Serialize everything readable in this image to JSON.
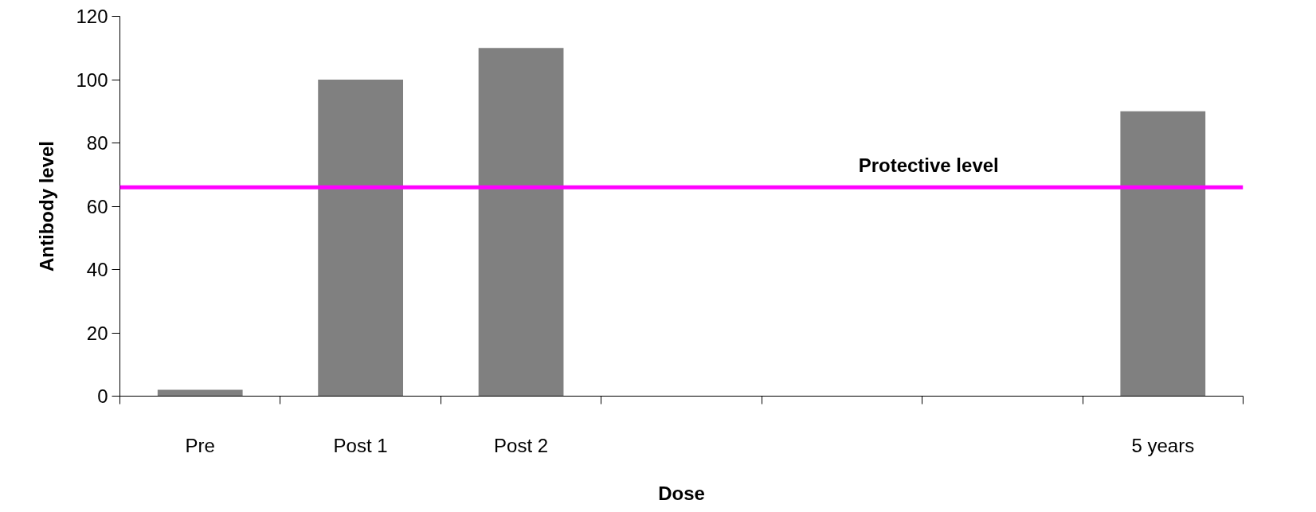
{
  "chart_data": {
    "type": "bar",
    "xlabel": "Dose",
    "ylabel": "Antibody level",
    "categories": [
      "Pre",
      "Post 1",
      "Post 2",
      null,
      null,
      null,
      "5 years"
    ],
    "values": [
      2,
      100,
      110,
      null,
      null,
      null,
      90
    ],
    "color": "#808080",
    "ylim": [
      0,
      120
    ],
    "yticks": [
      0,
      20,
      40,
      60,
      80,
      100,
      120
    ],
    "grid": false,
    "ref_lines": [
      {
        "axis": "y",
        "value": 66,
        "label": "Protective level",
        "color": "#ff00ff"
      }
    ]
  }
}
